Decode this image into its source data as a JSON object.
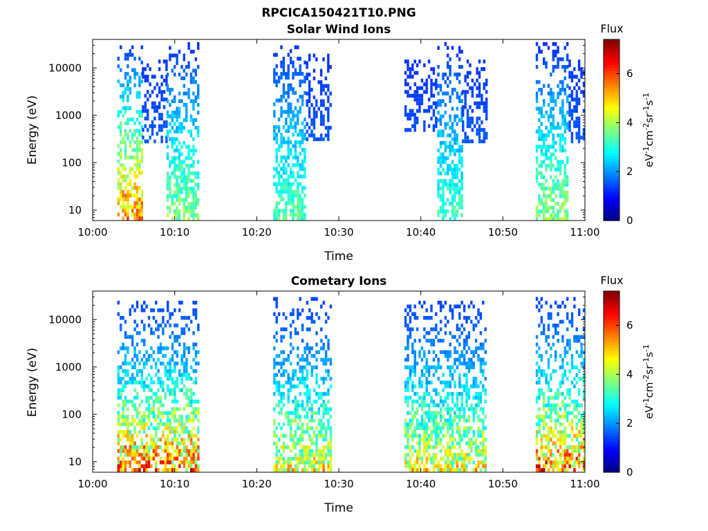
{
  "figure": {
    "title": "RPCICA150421T10.PNG"
  },
  "colorbar": {
    "title": "Flux",
    "label": "eV-1cm-2sr-1s-1",
    "ticks": [
      "0",
      "2",
      "4",
      "6"
    ],
    "range": [
      0,
      7.4
    ]
  },
  "chart_data": [
    {
      "type": "heatmap",
      "title": "Solar Wind Ions",
      "xlabel": "Time",
      "ylabel": "Energy (eV)",
      "x_ticks": [
        "10:00",
        "10:10",
        "10:20",
        "10:30",
        "10:40",
        "10:50",
        "11:00"
      ],
      "y_ticks": [
        "10",
        "100",
        "1000",
        "10000"
      ],
      "xlim": [
        "10:00",
        "11:00"
      ],
      "ylim": [
        6,
        40000
      ],
      "y_scale": "log",
      "grid": false,
      "z_label": "Flux",
      "clusters": [
        {
          "t0": "10:03",
          "t1": "10:06",
          "emin": 6,
          "emax": 30000,
          "peak_flux": 6.5
        },
        {
          "t0": "10:06",
          "t1": "10:09",
          "emin": 300,
          "emax": 15000,
          "peak_flux": 2.0
        },
        {
          "t0": "10:09",
          "t1": "10:13",
          "emin": 6,
          "emax": 35000,
          "peak_flux": 4.5
        },
        {
          "t0": "10:22",
          "t1": "10:26",
          "emin": 6,
          "emax": 30000,
          "peak_flux": 4.0
        },
        {
          "t0": "10:26",
          "t1": "10:29",
          "emin": 300,
          "emax": 20000,
          "peak_flux": 2.0
        },
        {
          "t0": "10:38",
          "t1": "10:42",
          "emin": 500,
          "emax": 15000,
          "peak_flux": 1.8
        },
        {
          "t0": "10:42",
          "t1": "10:45",
          "emin": 6,
          "emax": 35000,
          "peak_flux": 3.8
        },
        {
          "t0": "10:45",
          "t1": "10:48",
          "emin": 300,
          "emax": 15000,
          "peak_flux": 2.0
        },
        {
          "t0": "10:54",
          "t1": "10:58",
          "emin": 6,
          "emax": 35000,
          "peak_flux": 4.5
        },
        {
          "t0": "10:58",
          "t1": "11:00",
          "emin": 300,
          "emax": 15000,
          "peak_flux": 2.0
        }
      ]
    },
    {
      "type": "heatmap",
      "title": "Cometary Ions",
      "xlabel": "Time",
      "ylabel": "Energy (eV)",
      "x_ticks": [
        "10:00",
        "10:10",
        "10:20",
        "10:30",
        "10:40",
        "10:50",
        "11:00"
      ],
      "y_ticks": [
        "10",
        "100",
        "1000",
        "10000"
      ],
      "xlim": [
        "10:00",
        "11:00"
      ],
      "ylim": [
        6,
        40000
      ],
      "y_scale": "log",
      "grid": false,
      "z_label": "Flux",
      "clusters": [
        {
          "t0": "10:03",
          "t1": "10:13",
          "emin": 6,
          "emax": 25000,
          "peak_flux": 7.4
        },
        {
          "t0": "10:22",
          "t1": "10:29",
          "emin": 6,
          "emax": 30000,
          "peak_flux": 6.0
        },
        {
          "t0": "10:38",
          "t1": "10:48",
          "emin": 6,
          "emax": 25000,
          "peak_flux": 6.0
        },
        {
          "t0": "10:54",
          "t1": "11:00",
          "emin": 6,
          "emax": 30000,
          "peak_flux": 7.4
        }
      ]
    }
  ]
}
